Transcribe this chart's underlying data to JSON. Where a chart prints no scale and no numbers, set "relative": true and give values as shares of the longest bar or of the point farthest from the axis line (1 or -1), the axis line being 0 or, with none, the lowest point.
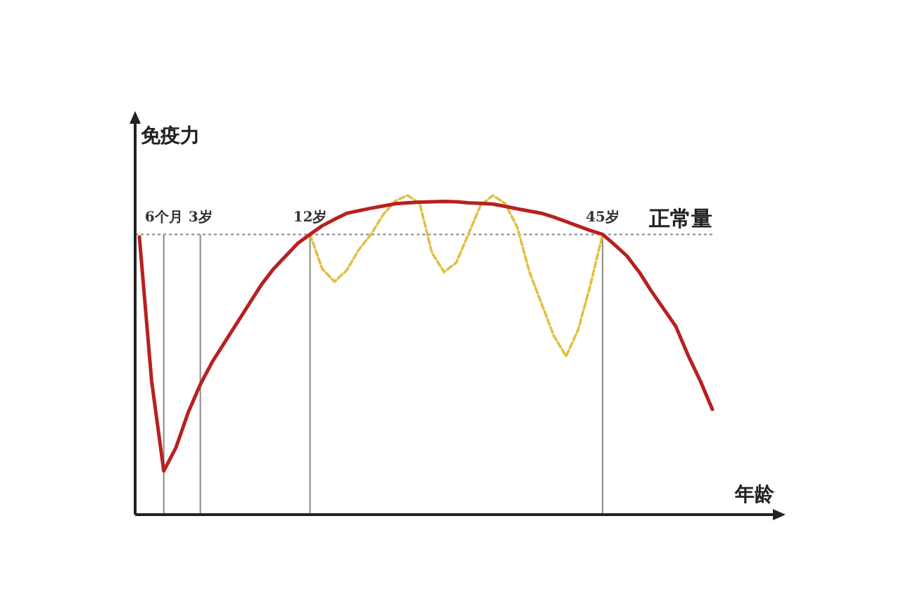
{
  "chart_data": {
    "type": "line",
    "relative": true,
    "xlabel": "年龄",
    "ylabel": "免疫力",
    "marker": "none",
    "categories": [
      null,
      null,
      "6个月",
      null,
      null,
      "3岁",
      null,
      null,
      null,
      null,
      null,
      null,
      null,
      null,
      "12岁",
      null,
      null,
      null,
      null,
      null,
      null,
      null,
      null,
      null,
      null,
      null,
      null,
      null,
      null,
      null,
      null,
      null,
      null,
      null,
      null,
      null,
      null,
      null,
      "45岁",
      null,
      null,
      null,
      null,
      null,
      null,
      null,
      null,
      null
    ],
    "series": [
      {
        "color": "#b82020",
        "line_style": "solid",
        "values": [
          0.87,
          0.42,
          0.137,
          0.21,
          0.32,
          0.408,
          0.48,
          0.54,
          0.6,
          0.66,
          0.72,
          0.77,
          0.81,
          0.85,
          0.878,
          0.905,
          0.925,
          0.944,
          0.952,
          0.96,
          0.967,
          0.974,
          0.977,
          0.979,
          0.98,
          0.981,
          0.98,
          0.977,
          0.975,
          0.973,
          0.966,
          0.958,
          0.951,
          0.944,
          0.932,
          0.918,
          0.904,
          0.89,
          0.878,
          0.845,
          0.81,
          0.76,
          0.7,
          0.645,
          0.59,
          0.5,
          0.42,
          0.33
        ]
      },
      {
        "color": "#e0c040",
        "line_style": "dashed",
        "values": [
          null,
          null,
          null,
          null,
          null,
          null,
          null,
          null,
          null,
          null,
          null,
          null,
          null,
          null,
          0.878,
          0.77,
          0.73,
          0.765,
          0.83,
          0.878,
          0.94,
          0.983,
          1.0,
          0.975,
          0.82,
          0.76,
          0.79,
          0.88,
          0.97,
          1.0,
          0.975,
          0.9,
          0.76,
          0.66,
          0.56,
          0.496,
          0.58,
          0.72,
          0.878,
          null,
          null,
          null,
          null,
          null,
          null,
          null,
          null,
          null
        ]
      }
    ],
    "ref_lines": [
      {
        "axis": "y",
        "value": 0.878,
        "label": "正常量",
        "color": "#888888",
        "line_style": "dotted"
      },
      {
        "axis": "x",
        "value": "6个月",
        "color": "#888888",
        "line_style": "solid"
      },
      {
        "axis": "x",
        "value": "3岁",
        "color": "#888888",
        "line_style": "solid"
      },
      {
        "axis": "x",
        "value": "12岁",
        "color": "#888888",
        "line_style": "solid"
      },
      {
        "axis": "x",
        "value": "45岁",
        "color": "#888888",
        "line_style": "solid"
      }
    ]
  }
}
